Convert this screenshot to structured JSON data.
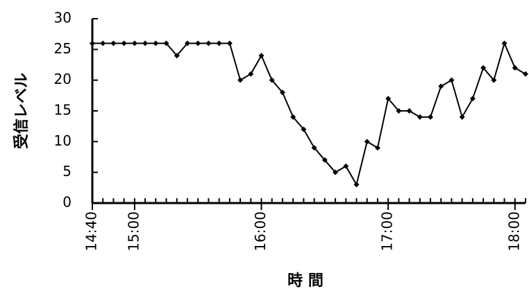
{
  "chart_data": {
    "type": "line",
    "y_label": "受信レベル",
    "x_label": "時 間",
    "x": [
      "14:40",
      "14:45",
      "14:50",
      "14:55",
      "15:00",
      "15:05",
      "15:10",
      "15:15",
      "15:20",
      "15:25",
      "15:30",
      "15:35",
      "15:40",
      "15:45",
      "15:50",
      "15:55",
      "16:00",
      "16:05",
      "16:10",
      "16:15",
      "16:20",
      "16:25",
      "16:30",
      "16:35",
      "16:40",
      "16:45",
      "16:50",
      "16:55",
      "17:00",
      "17:05",
      "17:10",
      "17:15",
      "17:20",
      "17:25",
      "17:30",
      "17:35",
      "17:40",
      "17:45",
      "17:50",
      "17:55",
      "18:00",
      "18:05"
    ],
    "series": [
      {
        "color": "#000000",
        "values": [
          26,
          26,
          26,
          26,
          26,
          26,
          26,
          26,
          24,
          26,
          26,
          26,
          26,
          26,
          20,
          21,
          24,
          20,
          18,
          14,
          12,
          9,
          7,
          5,
          6,
          3,
          10,
          9,
          17,
          15,
          15,
          14,
          14,
          19,
          20,
          14,
          17,
          22,
          20,
          26,
          22,
          21
        ]
      }
    ],
    "xlim": [
      "14:40",
      "18:05"
    ],
    "xticks": [
      "14:40",
      "15:00",
      "16:00",
      "17:00",
      "18:00"
    ],
    "ylim": [
      0,
      30
    ],
    "yticks": [
      0,
      5,
      10,
      15,
      20,
      25,
      30
    ]
  }
}
